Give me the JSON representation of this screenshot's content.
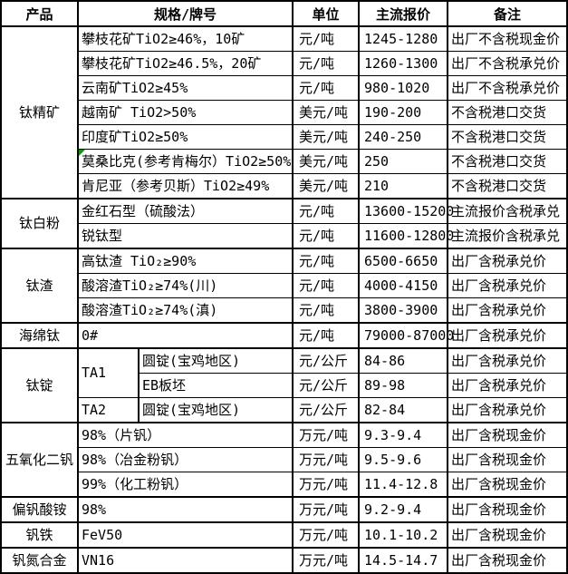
{
  "colors": {
    "border": "#000000",
    "background": "#FFFFFF",
    "text": "#000000",
    "marker_green": "#00A000"
  },
  "header": {
    "product": "产品",
    "spec": "规格/牌号",
    "unit": "单位",
    "price": "主流报价",
    "note": "备注"
  },
  "rows": [
    {
      "product": "钛精矿",
      "spec": "攀枝花矿TiO2≥46%，10矿",
      "unit": "元/吨",
      "price": "1245-1280",
      "note": "出厂不含税现金价"
    },
    {
      "spec": "攀枝花矿TiO2≥46.5%，20矿",
      "unit": "元/吨",
      "price": "1260-1300",
      "note": "出厂不含税承兑价"
    },
    {
      "spec": "云南矿TiO2≥45%",
      "unit": "元/吨",
      "price": "980-1020",
      "note": "出厂不含税承兑价"
    },
    {
      "spec": "越南矿 TiO2>50%",
      "unit": "美元/吨",
      "price": "190-200",
      "note": "不含税港口交货"
    },
    {
      "spec": "印度矿TiO2≥50%",
      "unit": "美元/吨",
      "price": "240-250",
      "note": "不含税港口交货"
    },
    {
      "spec": "莫桑比克(参考肯梅尔）TiO2≥50%",
      "unit": "美元/吨",
      "price": "250",
      "note": "不含税港口交货",
      "marker": "green-corner"
    },
    {
      "spec": "肯尼亚（参考贝斯）TiO2≥49%",
      "unit": "美元/吨",
      "price": "210",
      "note": "不含税港口交货"
    },
    {
      "product": "钛白粉",
      "spec": "金红石型（硫酸法）",
      "unit": "元/吨",
      "price": "13600-15200",
      "note": "主流报价含税承兑"
    },
    {
      "spec": "锐钛型",
      "unit": "元/吨",
      "price": "11600-12800",
      "note": "主流报价含税承兑"
    },
    {
      "product": "钛渣",
      "spec": "高钛渣 TiO₂≥90%",
      "unit": "元/吨",
      "price": "6500-6650",
      "note": "出厂含税承兑价"
    },
    {
      "spec": "酸溶渣TiO₂≥74%(川)",
      "unit": "元/吨",
      "price": "4000-4150",
      "note": "出厂含税承兑价"
    },
    {
      "spec": "酸溶渣TiO₂≥74%(滇)",
      "unit": "元/吨",
      "price": "3800-3900",
      "note": "出厂含税承兑价"
    },
    {
      "product": "海绵钛",
      "spec": "0#",
      "unit": "元/吨",
      "price": "79000-87000",
      "note": "出厂含税承兑价"
    },
    {
      "product": "钛锭",
      "grade": "TA1",
      "spec": "圆锭(宝鸡地区)",
      "unit": "元/公斤",
      "price": "84-86",
      "note": "出厂含税承兑价"
    },
    {
      "spec": "EB板坯",
      "unit": "元/公斤",
      "price": "89-98",
      "note": "出厂含税承兑价"
    },
    {
      "grade": "TA2",
      "spec": "圆锭(宝鸡地区)",
      "unit": "元/公斤",
      "price": "82-84",
      "note": "出厂含税承兑价"
    },
    {
      "product": "五氧化二钒",
      "spec": "98%（片钒）",
      "unit": "万元/吨",
      "price": "9.3-9.4",
      "note": "出厂含税现金价"
    },
    {
      "spec": "98%（冶金粉钒）",
      "unit": "万元/吨",
      "price": "9.5-9.6",
      "note": "出厂含税现金价"
    },
    {
      "spec": "99%（化工粉钒）",
      "unit": "万元/吨",
      "price": "11.4-12.8",
      "note": "出厂含税现金价"
    },
    {
      "product": "偏钒酸铵",
      "spec": "98%",
      "unit": "万元/吨",
      "price": "9.2-9.4",
      "note": "出厂含税现金价"
    },
    {
      "product": "钒铁",
      "spec": "FeV50",
      "unit": "万元/吨",
      "price": "10.1-10.2",
      "note": "出厂含税现金价"
    },
    {
      "product": "钒氮合金",
      "spec": "VN16",
      "unit": "万元/吨",
      "price": "14.5-14.7",
      "note": "出厂含税现金价"
    }
  ]
}
